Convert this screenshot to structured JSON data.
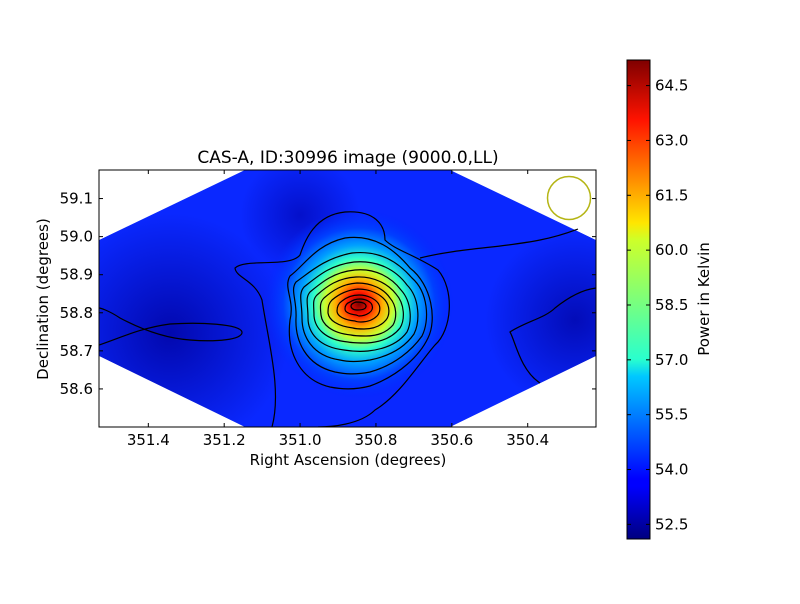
{
  "chart_data": {
    "type": "heatmap",
    "title": "CAS-A, ID:30996 image (9000.0,LL)",
    "xlabel": "Right Ascension (degrees)",
    "ylabel": "Declination (degrees)",
    "xlim": [
      351.53,
      350.22
    ],
    "ylim": [
      58.5,
      59.175
    ],
    "x_ticks": [
      "351.4",
      "351.2",
      "351.0",
      "350.8",
      "350.6",
      "350.4"
    ],
    "x_tick_values": [
      351.4,
      351.2,
      351.0,
      350.8,
      350.6,
      350.4
    ],
    "y_ticks": [
      "58.6",
      "58.7",
      "58.8",
      "58.9",
      "59.0",
      "59.1"
    ],
    "y_tick_values": [
      58.6,
      58.7,
      58.8,
      58.9,
      59.0,
      59.1
    ],
    "colorbar": {
      "label": "Power in Kelvin",
      "min": 52.1,
      "max": 65.2,
      "ticks": [
        "52.5",
        "54.0",
        "55.5",
        "57.0",
        "58.5",
        "60.0",
        "61.5",
        "63.0",
        "64.5"
      ],
      "tick_values": [
        52.5,
        54.0,
        55.5,
        57.0,
        58.5,
        60.0,
        61.5,
        63.0,
        64.5
      ],
      "colormap": "jet"
    },
    "source_peak": {
      "ra": 350.855,
      "dec": 58.825,
      "value": 65.0
    },
    "beam_marker": {
      "ra": 350.27,
      "dec": 59.105,
      "color": "#b5b515"
    },
    "contour_color": "#000000"
  }
}
